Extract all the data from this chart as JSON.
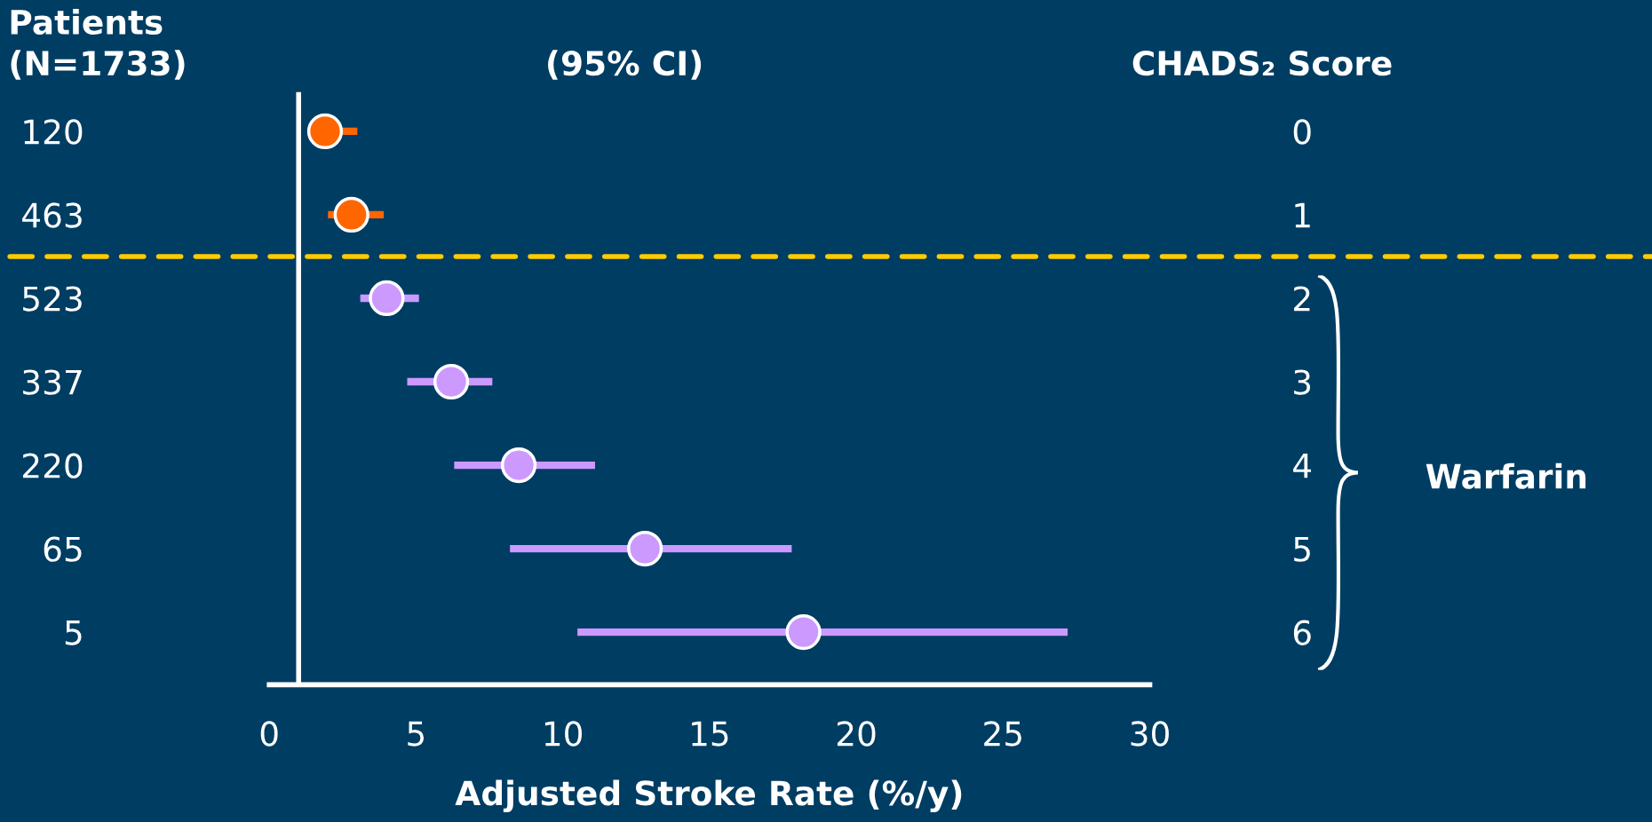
{
  "chart_data": {
    "type": "scatter",
    "orientation": "horizontal",
    "subtitle": "(95% CI)",
    "xlabel": "Adjusted Stroke Rate (%/y)",
    "ylabel": "Patients\n(N=1733)",
    "y2label": "CHADS₂ Score",
    "categories": [
      "120",
      "463",
      "523",
      "337",
      "220",
      "65",
      "5"
    ],
    "y2_categories": [
      "0",
      "1",
      "2",
      "3",
      "4",
      "5",
      "6"
    ],
    "series": [
      {
        "color": "#ff6600",
        "values": [
          1.9,
          2.8,
          null,
          null,
          null,
          null,
          null
        ],
        "errors": [
          [
            1.3,
            3.0
          ],
          [
            2.0,
            3.9
          ],
          null,
          null,
          null,
          null,
          null
        ]
      },
      {
        "color": "#cc99ff",
        "values": [
          null,
          null,
          4.0,
          6.2,
          8.5,
          12.8,
          18.2
        ],
        "errors": [
          null,
          null,
          [
            3.1,
            5.1
          ],
          [
            4.7,
            7.6
          ],
          [
            6.3,
            11.1
          ],
          [
            8.2,
            17.8
          ],
          [
            10.5,
            27.2
          ]
        ]
      }
    ],
    "xlim": [
      0,
      30
    ],
    "xticks": [
      0,
      5,
      10,
      15,
      20,
      25,
      30
    ],
    "ref_lines": [
      {
        "axis": "x",
        "value": 1,
        "color": "#ffffff",
        "line_style": "solid"
      }
    ],
    "annotations": [
      "Warfarin"
    ],
    "marker": "circle",
    "grid": false,
    "legend": false
  }
}
